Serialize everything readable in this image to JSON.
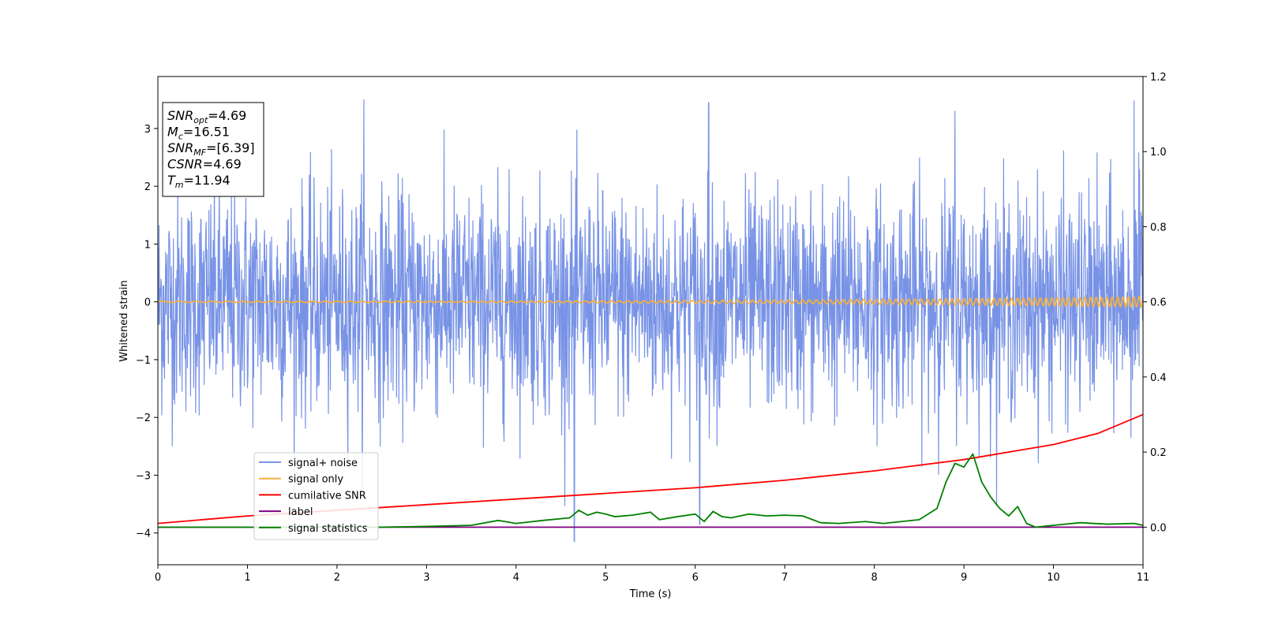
{
  "chart_data": {
    "type": "line",
    "title": "",
    "xlabel": "Time (s)",
    "ylabel": "Whitened strain",
    "xlim": [
      0,
      11
    ],
    "ylim": [
      -4.55,
      3.9
    ],
    "y2lim": [
      -0.1,
      1.2
    ],
    "x_ticks": [
      "0",
      "1",
      "2",
      "3",
      "4",
      "5",
      "6",
      "7",
      "8",
      "9",
      "10",
      "11"
    ],
    "y_ticks": [
      "−4",
      "−3",
      "−2",
      "−1",
      "0",
      "1",
      "2",
      "3"
    ],
    "y2_ticks": [
      "0.0",
      "0.2",
      "0.4",
      "0.6",
      "0.8",
      "1.0",
      "1.2"
    ],
    "grid": false,
    "legend_position": "lower-left",
    "info_box": [
      {
        "base": "SNR",
        "sub": "opt",
        "value": "=4.69"
      },
      {
        "base": "M",
        "sub": "c",
        "value": "=16.51"
      },
      {
        "base": "SNR",
        "sub": "MF",
        "value": "=[6.39]"
      },
      {
        "base": "CSNR",
        "sub": "",
        "value": "=4.69"
      },
      {
        "base": "T",
        "sub": "m",
        "value": "=11.94"
      }
    ],
    "series": [
      {
        "name": "signal+ noise",
        "color": "#7893e6",
        "axis": "left",
        "kind": "noise",
        "amplitude_range": [
          -4.15,
          3.5
        ],
        "points_per_second": 230,
        "notable_peaks": [
          [
            2.3,
            3.5
          ],
          [
            6.15,
            3.45
          ],
          [
            10.9,
            3.48
          ],
          [
            8.9,
            3.3
          ],
          [
            4.65,
            -4.15
          ],
          [
            6.05,
            -3.85
          ]
        ]
      },
      {
        "name": "signal only",
        "color": "#f5b041",
        "axis": "left",
        "kind": "chirp",
        "amplitude_start": 0.01,
        "amplitude_end": 0.09,
        "freq_start": 5,
        "freq_end": 17
      },
      {
        "name": "cumilative SNR",
        "color": "#ff0000",
        "axis": "right",
        "x": [
          0,
          1,
          2,
          3,
          4,
          5,
          6,
          7,
          8,
          9,
          9.5,
          10,
          10.5,
          11
        ],
        "y": [
          0.01,
          0.03,
          0.045,
          0.06,
          0.075,
          0.09,
          0.105,
          0.125,
          0.15,
          0.18,
          0.2,
          0.22,
          0.25,
          0.3
        ]
      },
      {
        "name": "label",
        "color": "#800080",
        "axis": "right",
        "x": [
          0,
          11
        ],
        "y": [
          0.0,
          0.0
        ]
      },
      {
        "name": "signal statistics",
        "color": "#008000",
        "axis": "right",
        "x": [
          0,
          0.5,
          1,
          1.5,
          2,
          2.5,
          3,
          3.5,
          3.8,
          4,
          4.3,
          4.6,
          4.7,
          4.8,
          4.9,
          5.0,
          5.1,
          5.3,
          5.5,
          5.6,
          5.8,
          6.0,
          6.1,
          6.2,
          6.3,
          6.4,
          6.5,
          6.6,
          6.8,
          7.0,
          7.2,
          7.4,
          7.6,
          7.9,
          8.1,
          8.3,
          8.5,
          8.7,
          8.8,
          8.9,
          9.0,
          9.1,
          9.2,
          9.3,
          9.4,
          9.5,
          9.6,
          9.7,
          9.8,
          10.0,
          10.3,
          10.6,
          10.9,
          11
        ],
        "y": [
          0.0,
          0.0,
          0.0,
          0.0,
          0.0,
          0.0,
          0.002,
          0.005,
          0.018,
          0.01,
          0.018,
          0.025,
          0.045,
          0.032,
          0.04,
          0.035,
          0.028,
          0.032,
          0.04,
          0.02,
          0.028,
          0.035,
          0.015,
          0.042,
          0.028,
          0.025,
          0.03,
          0.035,
          0.03,
          0.032,
          0.03,
          0.012,
          0.01,
          0.015,
          0.01,
          0.015,
          0.02,
          0.05,
          0.12,
          0.17,
          0.16,
          0.195,
          0.12,
          0.08,
          0.05,
          0.03,
          0.055,
          0.01,
          0.0,
          0.005,
          0.012,
          0.008,
          0.01,
          0.005
        ]
      }
    ]
  }
}
